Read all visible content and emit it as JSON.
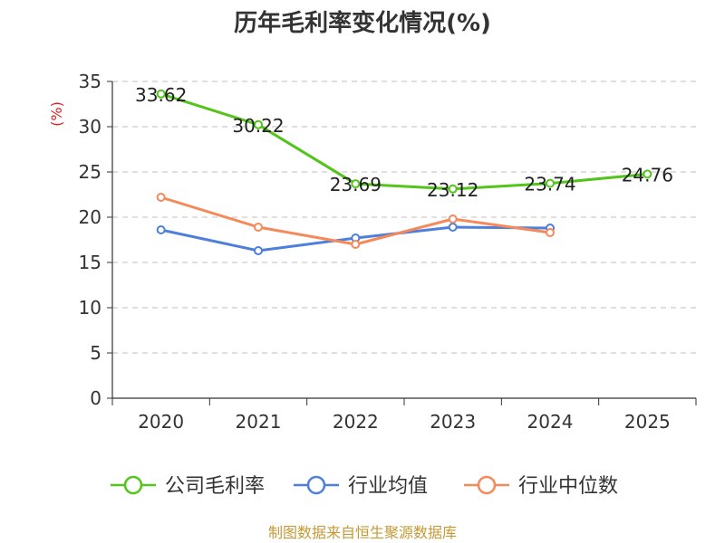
{
  "chart_data": {
    "type": "line",
    "title": "历年毛利率变化情况(%)",
    "ylabel": "(%)",
    "xlabel": "",
    "ylim": [
      0,
      35
    ],
    "yticks": [
      0,
      5,
      10,
      15,
      20,
      25,
      30,
      35
    ],
    "grid": true,
    "legend_position": "bottom",
    "categories": [
      "2020",
      "2021",
      "2022",
      "2023",
      "2024",
      "2025"
    ],
    "series": [
      {
        "name": "公司毛利率",
        "color": "#52c41a",
        "values": [
          33.62,
          30.22,
          23.69,
          23.12,
          23.74,
          24.76
        ],
        "labels": [
          "33.62",
          "30.22",
          "23.69",
          "23.12",
          "23.74",
          "24.76"
        ]
      },
      {
        "name": "行业均值",
        "color": "#4e7fdb",
        "values": [
          18.6,
          16.3,
          17.7,
          18.9,
          18.8,
          null
        ]
      },
      {
        "name": "行业中位数",
        "color": "#f5895a",
        "values": [
          22.2,
          18.9,
          17.0,
          19.8,
          18.3,
          null
        ]
      }
    ],
    "unit_color": "#e02020"
  },
  "source": {
    "text": "制图数据来自恒生聚源数据库",
    "color": "#c49a35"
  }
}
